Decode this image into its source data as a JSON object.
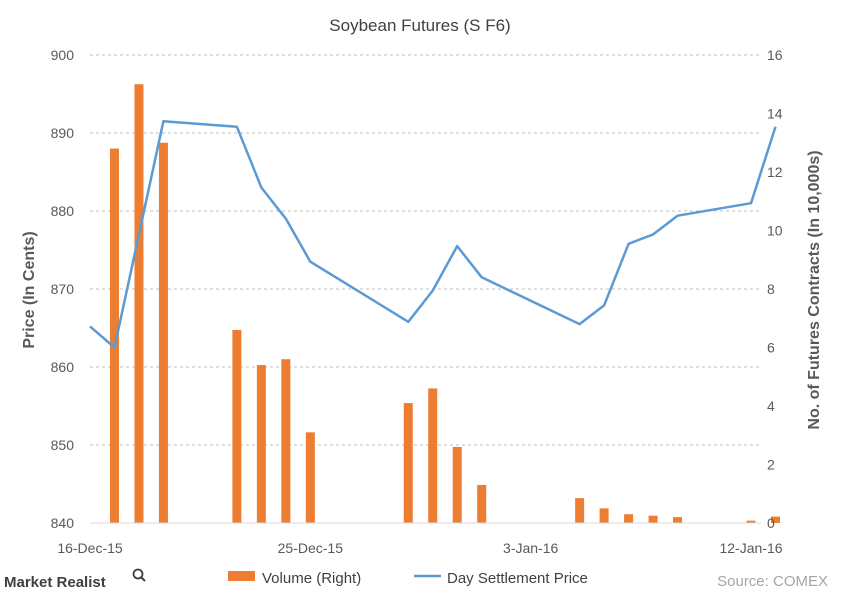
{
  "chart_data": {
    "type": "bar+line",
    "title": "Soybean Futures (S F6)",
    "ylabel_left": "Price (In Cents)",
    "ylabel_right": "No. of Futures Contracts (In 10,000s)",
    "ylim_left": [
      840,
      900
    ],
    "yticks_left": [
      "840",
      "850",
      "860",
      "870",
      "880",
      "890",
      "900"
    ],
    "ylim_right": [
      0,
      16
    ],
    "yticks_right": [
      "0",
      "2",
      "4",
      "6",
      "8",
      "10",
      "12",
      "14",
      "16"
    ],
    "x_tick_labels": [
      "16-Dec-15",
      "25-Dec-15",
      "3-Jan-16",
      "12-Jan-16"
    ],
    "grid": "horizontal dashed",
    "legend_position": "bottom",
    "series": [
      {
        "name": "Volume (Right)",
        "type": "bar",
        "color": "#ED7D31",
        "points": [
          {
            "date": "2015-12-16",
            "value": 0
          },
          {
            "date": "2015-12-17",
            "value": 12.8
          },
          {
            "date": "2015-12-18",
            "value": 15.0
          },
          {
            "date": "2015-12-19",
            "value": 13.0
          },
          {
            "date": "2015-12-22",
            "value": 6.6
          },
          {
            "date": "2015-12-23",
            "value": 5.4
          },
          {
            "date": "2015-12-24",
            "value": 5.6
          },
          {
            "date": "2015-12-25",
            "value": 3.1
          },
          {
            "date": "2015-12-29",
            "value": 4.1
          },
          {
            "date": "2015-12-30",
            "value": 4.6
          },
          {
            "date": "2015-12-31",
            "value": 2.6
          },
          {
            "date": "2016-01-01",
            "value": 1.3
          },
          {
            "date": "2016-01-05",
            "value": 0.85
          },
          {
            "date": "2016-01-06",
            "value": 0.5
          },
          {
            "date": "2016-01-07",
            "value": 0.3
          },
          {
            "date": "2016-01-08",
            "value": 0.25
          },
          {
            "date": "2016-01-09",
            "value": 0.2
          },
          {
            "date": "2016-01-12",
            "value": 0.08
          },
          {
            "date": "2016-01-13",
            "value": 0.22
          }
        ]
      },
      {
        "name": "Day Settlement Price",
        "type": "line",
        "color": "#5B9BD5",
        "points": [
          {
            "date": "2015-12-16",
            "value": 865.2
          },
          {
            "date": "2015-12-17",
            "value": 862.5
          },
          {
            "date": "2015-12-19",
            "value": 891.5
          },
          {
            "date": "2015-12-22",
            "value": 890.8
          },
          {
            "date": "2015-12-23",
            "value": 883.0
          },
          {
            "date": "2015-12-24",
            "value": 879.0
          },
          {
            "date": "2015-12-25",
            "value": 873.5
          },
          {
            "date": "2015-12-29",
            "value": 865.8
          },
          {
            "date": "2015-12-30",
            "value": 869.8
          },
          {
            "date": "2015-12-31",
            "value": 875.5
          },
          {
            "date": "2016-01-01",
            "value": 871.5
          },
          {
            "date": "2016-01-05",
            "value": 865.5
          },
          {
            "date": "2016-01-06",
            "value": 867.9
          },
          {
            "date": "2016-01-07",
            "value": 875.8
          },
          {
            "date": "2016-01-08",
            "value": 877.0
          },
          {
            "date": "2016-01-09",
            "value": 879.4
          },
          {
            "date": "2016-01-12",
            "value": 881.0
          },
          {
            "date": "2016-01-13",
            "value": 890.8
          }
        ]
      }
    ]
  },
  "source_text": "Source: COMEX",
  "brand_text": "Market Realist"
}
